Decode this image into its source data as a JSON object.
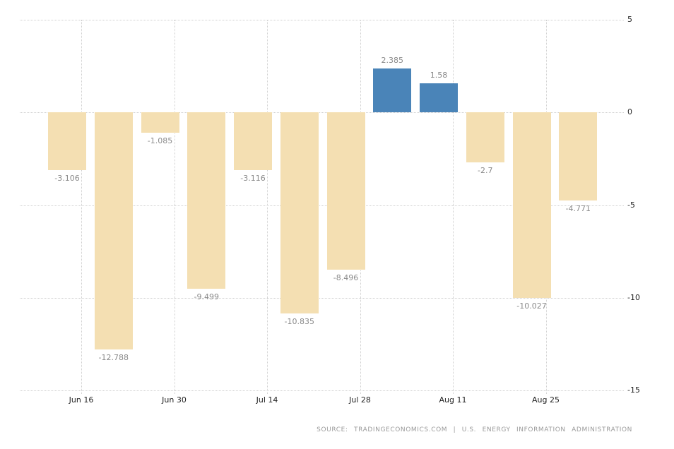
{
  "chart_data": {
    "type": "bar",
    "title": "",
    "xlabel": "",
    "ylabel": "",
    "values": [
      -3.106,
      -12.788,
      -1.085,
      -9.499,
      -3.116,
      -10.835,
      -8.496,
      2.385,
      1.58,
      -2.7,
      -10.027,
      -4.771
    ],
    "value_labels": [
      "-3.106",
      "-12.788",
      "-1.085",
      "-9.499",
      "-3.116",
      "-10.835",
      "-8.496",
      "2.385",
      "1.58",
      "-2.7",
      "-10.027",
      "-4.771"
    ],
    "x_tick_labels": [
      "Jun 16",
      "Jun 30",
      "Jul 14",
      "Jul 28",
      "Aug 11",
      "Aug 25"
    ],
    "y_ticks": [
      5,
      0,
      -5,
      -10,
      -15
    ],
    "y_tick_labels": [
      "5",
      "0",
      "-5",
      "-10",
      "-15"
    ],
    "ylim": [
      -15,
      5
    ],
    "grid": "dotted",
    "legend_position": "none",
    "colors": {
      "positive_bar": "#4a84b8",
      "negative_bar": "#f4dfb2",
      "gridline": "#cfcfcf",
      "value_label": "#8a8a8a",
      "axis_label": "#1f1f1f",
      "source_text": "#9a9a9a"
    }
  },
  "footer": {
    "source_text": "SOURCE: TRADINGECONOMICS.COM | U.S. ENERGY INFORMATION ADMINISTRATION"
  }
}
